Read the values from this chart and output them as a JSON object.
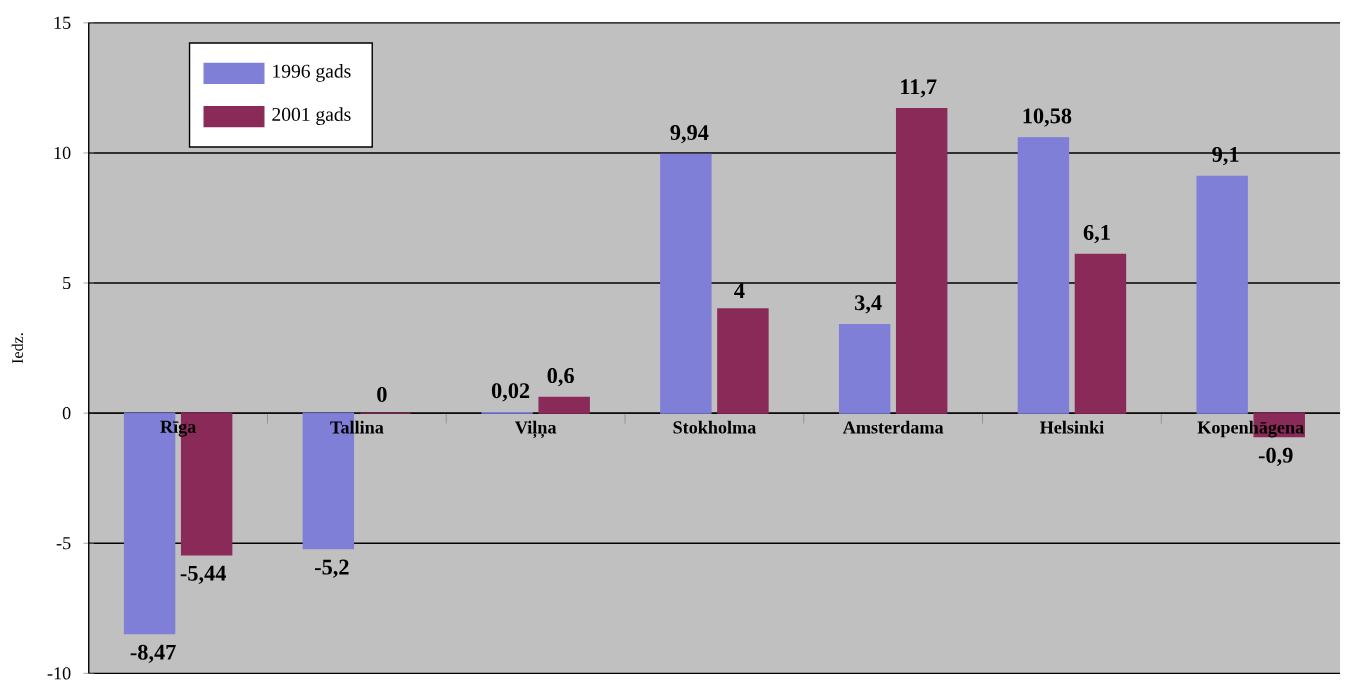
{
  "chart_data": {
    "type": "bar",
    "ylabel": "Iedz.",
    "categories": [
      "Rīga",
      "Tallina",
      "Viļņa",
      "Stokholma",
      "Amsterdama",
      "Helsinki",
      "Kopenhāgena"
    ],
    "series": [
      {
        "name": "1996 gads",
        "color": "#7f7fd8",
        "values": [
          -8.47,
          -5.2,
          0.02,
          9.94,
          3.4,
          10.58,
          9.1
        ],
        "value_labels": [
          "-8,47",
          "-5,2",
          "0,02",
          "9,94",
          "3,4",
          "10,58",
          "9,1"
        ]
      },
      {
        "name": "2001 gads",
        "color": "#8a2a58",
        "values": [
          -5.44,
          0,
          0.6,
          4,
          11.7,
          6.1,
          -0.9
        ],
        "value_labels": [
          "-5,44",
          "0",
          "0,6",
          "4",
          "11,7",
          "6,1",
          "-0,9"
        ]
      }
    ],
    "ylim": [
      -10,
      15
    ],
    "yticks": [
      -10,
      -5,
      0,
      5,
      10,
      15
    ],
    "grid": "y",
    "legend": "top left"
  }
}
